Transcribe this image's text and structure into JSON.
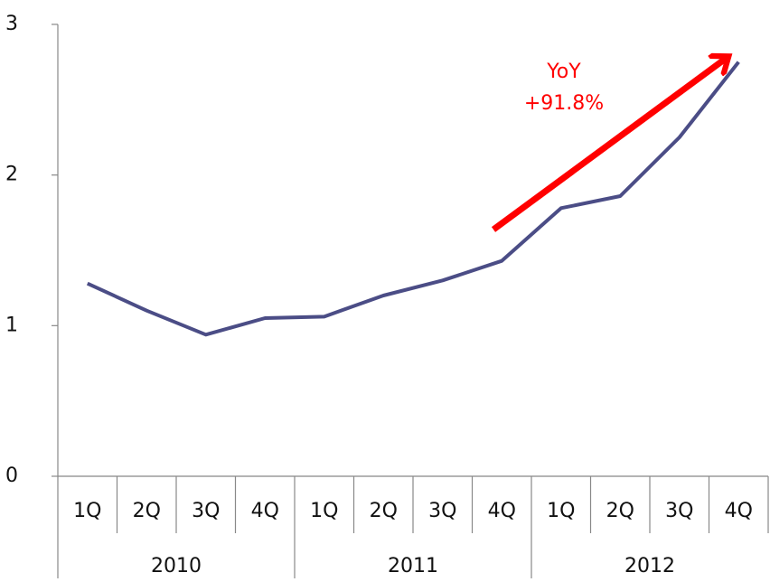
{
  "chart_data": {
    "type": "line",
    "categories": [
      "1Q",
      "2Q",
      "3Q",
      "4Q",
      "1Q",
      "2Q",
      "3Q",
      "4Q",
      "1Q",
      "2Q",
      "3Q",
      "4Q"
    ],
    "groups": [
      "2010",
      "2011",
      "2012"
    ],
    "series": [
      {
        "color": "#4b4d86",
        "values": [
          1.28,
          1.1,
          0.94,
          1.05,
          1.06,
          1.2,
          1.3,
          1.43,
          1.78,
          1.86,
          2.25,
          2.75
        ]
      }
    ],
    "ylim": [
      0,
      3
    ],
    "yticks": [
      0,
      1,
      2,
      3
    ],
    "grid": false,
    "annotation": {
      "lines": [
        "YoY",
        "+91.8%"
      ],
      "color": "#ff0000"
    }
  }
}
